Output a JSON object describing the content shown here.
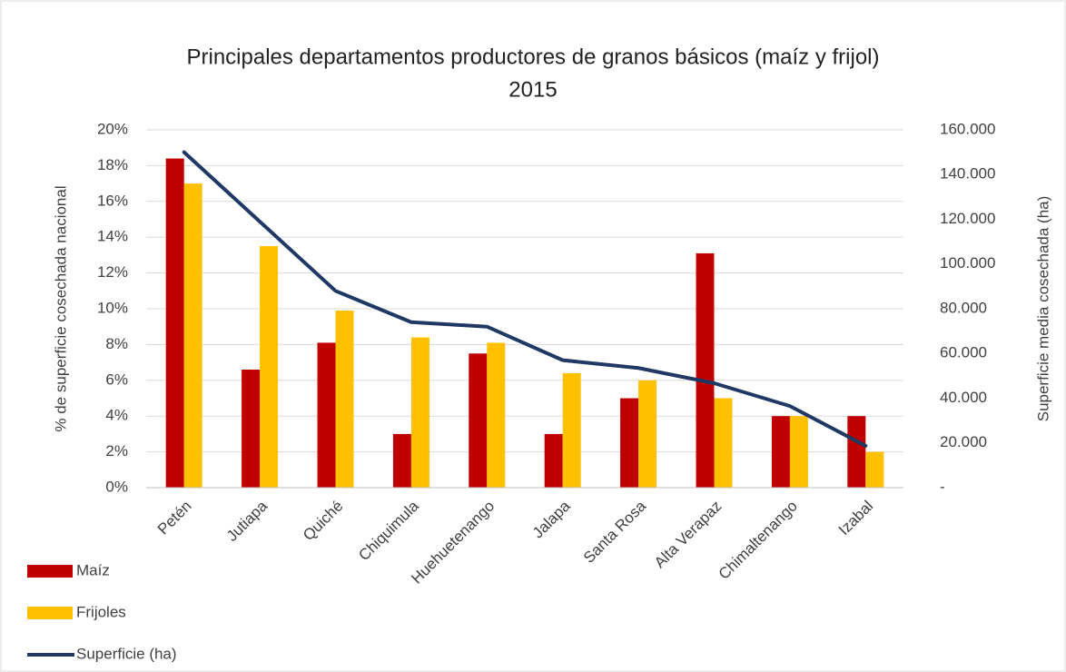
{
  "chart_data": {
    "type": "bar_line",
    "title": [
      "Principales departamentos productores de granos básicos (maíz y frijol)",
      "2015"
    ],
    "y_label": "% de superficie cosechada nacional",
    "y2_label": "Superficie media cosechada (ha)",
    "categories": [
      "Petén",
      "Jutiapa",
      "Quiché",
      "Chiquimula",
      "Huehuetenango",
      "Jalapa",
      "Santa Rosa",
      "Alta Verapaz",
      "Chimaltenango",
      "Izabal"
    ],
    "series": [
      {
        "name": "Maíz",
        "type": "bar",
        "color": "#c00000",
        "values": [
          18.4,
          6.6,
          8.1,
          3.0,
          7.5,
          3.0,
          5.0,
          13.1,
          4.0,
          4.0
        ]
      },
      {
        "name": "Frijoles",
        "type": "bar",
        "color": "#ffc000",
        "values": [
          17.0,
          13.5,
          9.9,
          8.4,
          8.1,
          6.4,
          6.0,
          5.0,
          4.0,
          2.0
        ]
      },
      {
        "name": "Superficie (ha)",
        "type": "line",
        "axis": "y2",
        "color": "#203864",
        "values": [
          150000,
          119000,
          88000,
          74000,
          72000,
          57000,
          53500,
          46700,
          36500,
          18700
        ]
      }
    ],
    "ylim": [
      0,
      20
    ],
    "yticks": [
      {
        "value": 0,
        "label": "0%"
      },
      {
        "value": 2,
        "label": "2%"
      },
      {
        "value": 4,
        "label": "4%"
      },
      {
        "value": 6,
        "label": "6%"
      },
      {
        "value": 8,
        "label": "8%"
      },
      {
        "value": 10,
        "label": "10%"
      },
      {
        "value": 12,
        "label": "12%"
      },
      {
        "value": 14,
        "label": "14%"
      },
      {
        "value": 16,
        "label": "16%"
      },
      {
        "value": 18,
        "label": "18%"
      },
      {
        "value": 20,
        "label": "20%"
      }
    ],
    "y2lim": [
      0,
      160000
    ],
    "y2ticks": [
      {
        "value": 0,
        "label": "-"
      },
      {
        "value": 20000,
        "label": "20.000"
      },
      {
        "value": 40000,
        "label": "40.000"
      },
      {
        "value": 60000,
        "label": "60.000"
      },
      {
        "value": 80000,
        "label": "80.000"
      },
      {
        "value": 100000,
        "label": "100.000"
      },
      {
        "value": 120000,
        "label": "120.000"
      },
      {
        "value": 140000,
        "label": "140.000"
      },
      {
        "value": 160000,
        "label": "160.000"
      }
    ],
    "grid": true,
    "legend": "bottom-left"
  }
}
